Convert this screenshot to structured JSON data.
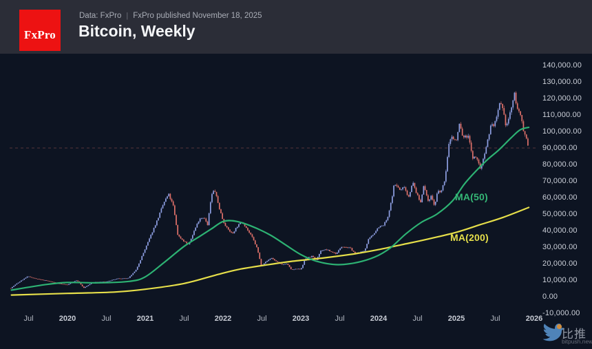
{
  "header": {
    "logo_text": "FxPro",
    "data_source": "Data: FxPro",
    "separator": "|",
    "published": "FxPro published November 18, 2025",
    "title": "Bitcoin, Weekly"
  },
  "watermark": {
    "brand_cn": "比推",
    "brand_domain": "bitpush.news"
  },
  "chart_data": {
    "type": "candlestick",
    "title": "Bitcoin, Weekly",
    "instrument": "Bitcoin",
    "timeframe": "Weekly",
    "background": "#0d1422",
    "y_axis": {
      "range": [
        -10000,
        140000
      ],
      "tick_step": 10000,
      "tick_values": [
        140000,
        130000,
        120000,
        110000,
        100000,
        90000,
        80000,
        70000,
        60000,
        50000,
        40000,
        30000,
        20000,
        10000,
        0,
        -10000
      ]
    },
    "x_axis": {
      "ticks": [
        {
          "label": "Jul",
          "year": 2019.5
        },
        {
          "label": "2020",
          "year": 2020
        },
        {
          "label": "Jul",
          "year": 2020.5
        },
        {
          "label": "2021",
          "year": 2021
        },
        {
          "label": "Jul",
          "year": 2021.5
        },
        {
          "label": "2022",
          "year": 2022
        },
        {
          "label": "Jul",
          "year": 2022.5
        },
        {
          "label": "2023",
          "year": 2023
        },
        {
          "label": "Jul",
          "year": 2023.5
        },
        {
          "label": "2024",
          "year": 2024
        },
        {
          "label": "Jul",
          "year": 2024.5
        },
        {
          "label": "2025",
          "year": 2025
        },
        {
          "label": "Jul",
          "year": 2025.5
        },
        {
          "label": "2026",
          "year": 2026
        }
      ]
    },
    "last_price_line": {
      "price": 90000,
      "style": "dashed",
      "color": "#e0716a"
    },
    "series": {
      "candles": {
        "name": "BTC/USD weekly candles",
        "up_color": "#8fa0e4",
        "down_color": "#e0716a",
        "close_keyframes": [
          [
            2019.27,
            5100
          ],
          [
            2019.35,
            8000
          ],
          [
            2019.49,
            12300
          ],
          [
            2019.6,
            10800
          ],
          [
            2019.75,
            9500
          ],
          [
            2019.88,
            8000
          ],
          [
            2020.0,
            7200
          ],
          [
            2020.12,
            10000
          ],
          [
            2020.21,
            5300
          ],
          [
            2020.33,
            8800
          ],
          [
            2020.5,
            9100
          ],
          [
            2020.65,
            11000
          ],
          [
            2020.78,
            11000
          ],
          [
            2020.88,
            16000
          ],
          [
            2021.0,
            29000
          ],
          [
            2021.08,
            38000
          ],
          [
            2021.16,
            47000
          ],
          [
            2021.24,
            57000
          ],
          [
            2021.3,
            62000
          ],
          [
            2021.36,
            55000
          ],
          [
            2021.42,
            37000
          ],
          [
            2021.5,
            33500
          ],
          [
            2021.56,
            31500
          ],
          [
            2021.63,
            40000
          ],
          [
            2021.7,
            47500
          ],
          [
            2021.76,
            48000
          ],
          [
            2021.8,
            43000
          ],
          [
            2021.85,
            61000
          ],
          [
            2021.89,
            65000
          ],
          [
            2021.95,
            54000
          ],
          [
            2022.0,
            46000
          ],
          [
            2022.05,
            41500
          ],
          [
            2022.12,
            38000
          ],
          [
            2022.18,
            42500
          ],
          [
            2022.25,
            45500
          ],
          [
            2022.32,
            40000
          ],
          [
            2022.38,
            35500
          ],
          [
            2022.44,
            29000
          ],
          [
            2022.49,
            19000
          ],
          [
            2022.55,
            21000
          ],
          [
            2022.62,
            23500
          ],
          [
            2022.68,
            21500
          ],
          [
            2022.75,
            19500
          ],
          [
            2022.82,
            20000
          ],
          [
            2022.88,
            16300
          ],
          [
            2022.95,
            16800
          ],
          [
            2023.0,
            16600
          ],
          [
            2023.06,
            23000
          ],
          [
            2023.14,
            24500
          ],
          [
            2023.2,
            22400
          ],
          [
            2023.26,
            28000
          ],
          [
            2023.33,
            28500
          ],
          [
            2023.4,
            27000
          ],
          [
            2023.46,
            26000
          ],
          [
            2023.52,
            30500
          ],
          [
            2023.58,
            30000
          ],
          [
            2023.64,
            29200
          ],
          [
            2023.7,
            26100
          ],
          [
            2023.76,
            26600
          ],
          [
            2023.82,
            28000
          ],
          [
            2023.87,
            34500
          ],
          [
            2023.93,
            37700
          ],
          [
            2024.0,
            42300
          ],
          [
            2024.06,
            43000
          ],
          [
            2024.12,
            48000
          ],
          [
            2024.16,
            57000
          ],
          [
            2024.2,
            68000
          ],
          [
            2024.24,
            67000
          ],
          [
            2024.28,
            64000
          ],
          [
            2024.33,
            67000
          ],
          [
            2024.38,
            60000
          ],
          [
            2024.44,
            69000
          ],
          [
            2024.5,
            61000
          ],
          [
            2024.54,
            57000
          ],
          [
            2024.58,
            68000
          ],
          [
            2024.63,
            58000
          ],
          [
            2024.68,
            61000
          ],
          [
            2024.72,
            54500
          ],
          [
            2024.76,
            64000
          ],
          [
            2024.8,
            63000
          ],
          [
            2024.84,
            68500
          ],
          [
            2024.87,
            77000
          ],
          [
            2024.9,
            91000
          ],
          [
            2024.93,
            97500
          ],
          [
            2024.97,
            95000
          ],
          [
            2025.0,
            94500
          ],
          [
            2025.04,
            105000
          ],
          [
            2025.08,
            97000
          ],
          [
            2025.12,
            96500
          ],
          [
            2025.16,
            98000
          ],
          [
            2025.2,
            84500
          ],
          [
            2025.24,
            84000
          ],
          [
            2025.28,
            82500
          ],
          [
            2025.31,
            76500
          ],
          [
            2025.35,
            85000
          ],
          [
            2025.4,
            94000
          ],
          [
            2025.44,
            103500
          ],
          [
            2025.48,
            104000
          ],
          [
            2025.52,
            108000
          ],
          [
            2025.56,
            117500
          ],
          [
            2025.6,
            112000
          ],
          [
            2025.64,
            103000
          ],
          [
            2025.68,
            109000
          ],
          [
            2025.71,
            115000
          ],
          [
            2025.745,
            122500
          ],
          [
            2025.78,
            115500
          ],
          [
            2025.81,
            110000
          ],
          [
            2025.84,
            107500
          ],
          [
            2025.87,
            99000
          ],
          [
            2025.9,
            96000
          ],
          [
            2025.925,
            91500
          ]
        ]
      },
      "ma50": {
        "label": "MA(50)",
        "color": "#2db273",
        "points": [
          [
            2019.28,
            4000
          ],
          [
            2019.7,
            7200
          ],
          [
            2020.0,
            8600
          ],
          [
            2020.4,
            8400
          ],
          [
            2020.8,
            9300
          ],
          [
            2021.0,
            12000
          ],
          [
            2021.25,
            21000
          ],
          [
            2021.5,
            30500
          ],
          [
            2021.7,
            36500
          ],
          [
            2021.85,
            41000
          ],
          [
            2022.0,
            45500
          ],
          [
            2022.15,
            45800
          ],
          [
            2022.35,
            43000
          ],
          [
            2022.6,
            37500
          ],
          [
            2022.8,
            31500
          ],
          [
            2023.0,
            25500
          ],
          [
            2023.2,
            21500
          ],
          [
            2023.45,
            19400
          ],
          [
            2023.7,
            20500
          ],
          [
            2023.95,
            24000
          ],
          [
            2024.15,
            29500
          ],
          [
            2024.35,
            38000
          ],
          [
            2024.55,
            45000
          ],
          [
            2024.75,
            50000
          ],
          [
            2024.95,
            58000
          ],
          [
            2025.1,
            68000
          ],
          [
            2025.25,
            76000
          ],
          [
            2025.4,
            83000
          ],
          [
            2025.55,
            89000
          ],
          [
            2025.7,
            96000
          ],
          [
            2025.82,
            101000
          ],
          [
            2025.93,
            102500
          ]
        ]
      },
      "ma200": {
        "label": "MA(200)",
        "color": "#e6df4a",
        "points": [
          [
            2019.28,
            1000
          ],
          [
            2020.0,
            2000
          ],
          [
            2020.6,
            2800
          ],
          [
            2021.0,
            4500
          ],
          [
            2021.5,
            8000
          ],
          [
            2021.9,
            13000
          ],
          [
            2022.2,
            16500
          ],
          [
            2022.6,
            19500
          ],
          [
            2022.9,
            21500
          ],
          [
            2023.3,
            23500
          ],
          [
            2023.7,
            26000
          ],
          [
            2024.0,
            28500
          ],
          [
            2024.3,
            31500
          ],
          [
            2024.6,
            34500
          ],
          [
            2025.0,
            39000
          ],
          [
            2025.3,
            43500
          ],
          [
            2025.6,
            48000
          ],
          [
            2025.93,
            54000
          ]
        ]
      }
    }
  }
}
